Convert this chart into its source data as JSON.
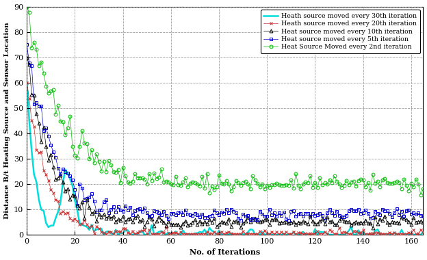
{
  "title": "",
  "xlabel": "No. of Iterations",
  "ylabel": "Distance B/t Heating Source and Sensor Location",
  "xlim": [
    0,
    165
  ],
  "ylim": [
    0,
    90
  ],
  "yticks": [
    0,
    10,
    20,
    30,
    40,
    50,
    60,
    70,
    80,
    90
  ],
  "xticks": [
    0,
    20,
    40,
    60,
    80,
    100,
    120,
    140,
    160
  ],
  "legend": [
    "Heat Source Moved every 2nd iteration",
    "Heat source moved every 5th iteration",
    "Heat source moved every 10th iteration",
    "Heath source moved every 20th iteration",
    "Heath source moved every 30th iteration"
  ],
  "colors": [
    "#00bb00",
    "#0000cc",
    "#000000",
    "#cc3333",
    "#00dddd"
  ],
  "markers": [
    "o",
    "s",
    "^",
    "x",
    ""
  ],
  "n_points": 166,
  "background": "#ffffff"
}
